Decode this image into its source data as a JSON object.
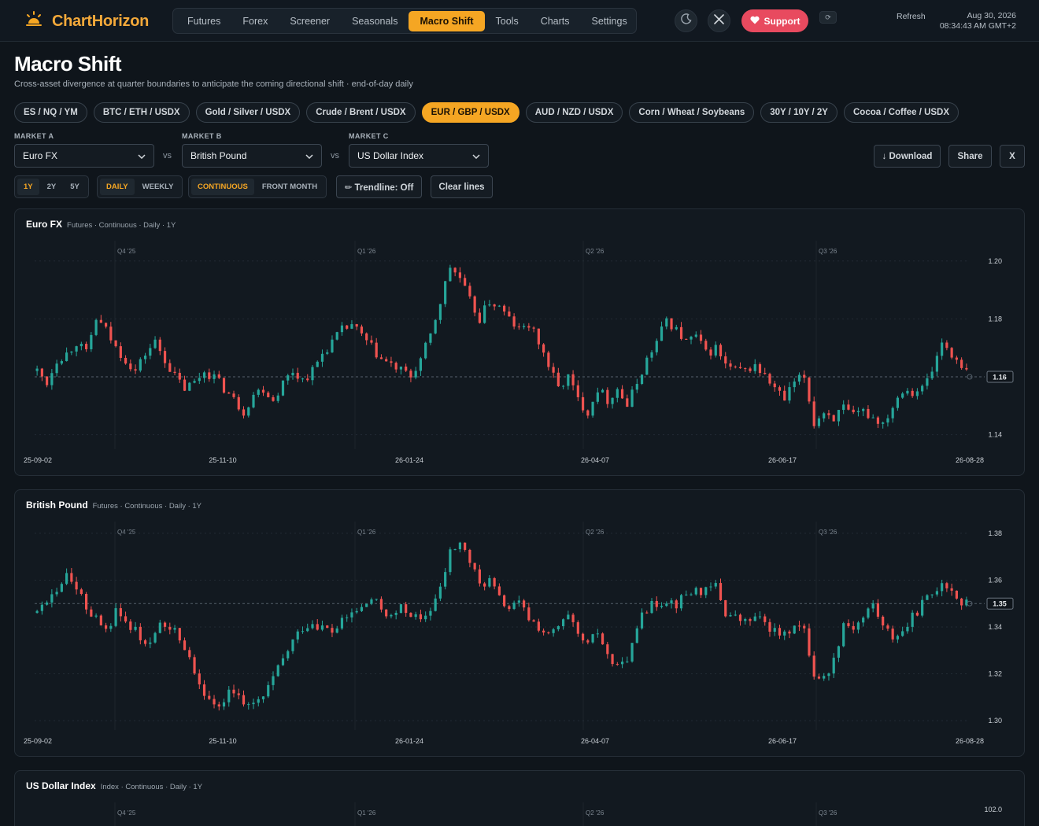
{
  "app": {
    "name": "ChartHorizon"
  },
  "nav": {
    "items": [
      "Futures",
      "Forex",
      "Screener",
      "Seasonals",
      "Macro Shift",
      "Tools",
      "Charts",
      "Settings"
    ],
    "active": "Macro Shift"
  },
  "header": {
    "support_label": "Support",
    "refresh_label": "Refresh",
    "date": "Aug 30, 2026",
    "time": "08:34:43 AM GMT+2",
    "icons": [
      "moon-icon",
      "x-logo-icon",
      "heart-icon",
      "refresh-icon"
    ]
  },
  "page": {
    "title": "Macro Shift",
    "subtitle": "Cross-asset divergence at quarter boundaries to anticipate the coming directional shift · end-of-day daily"
  },
  "presets": {
    "items": [
      "ES / NQ / YM",
      "BTC / ETH / USDX",
      "Gold / Silver / USDX",
      "Crude / Brent / USDX",
      "EUR / GBP / USDX",
      "AUD / NZD / USDX",
      "Corn / Wheat / Soybeans",
      "30Y / 10Y / 2Y",
      "Cocoa / Coffee / USDX"
    ],
    "active": "EUR / GBP / USDX"
  },
  "markets": {
    "a": {
      "label": "MARKET A",
      "value": "Euro FX"
    },
    "b": {
      "label": "MARKET B",
      "value": "British Pound"
    },
    "c": {
      "label": "MARKET C",
      "value": "US Dollar Index"
    },
    "vs": "vs"
  },
  "actions": {
    "download": "↓ Download",
    "share": "Share",
    "close": "X"
  },
  "controls": {
    "ranges": [
      "1Y",
      "2Y",
      "5Y"
    ],
    "range_active": "1Y",
    "intervals": [
      "DAILY",
      "WEEKLY"
    ],
    "interval_active": "DAILY",
    "contracts": [
      "CONTINUOUS",
      "FRONT MONTH"
    ],
    "contract_active": "CONTINUOUS",
    "trendline": "✏ Trendline: Off",
    "clear_lines": "Clear lines"
  },
  "colors": {
    "accent": "#f5a623",
    "up": "#26a69a",
    "down": "#ef5350",
    "background": "#0f151b",
    "panel": "#121920"
  },
  "chart_data": [
    {
      "type": "candlestick",
      "title": "Euro FX",
      "meta": "Futures · Continuous · Daily · 1Y",
      "quarters": [
        "Q4 '25",
        "Q1 '26",
        "Q2 '26",
        "Q3 '26"
      ],
      "x_ticks": [
        "25-09-02",
        "25-11-10",
        "26-01-24",
        "26-04-07",
        "26-06-17",
        "26-08-28"
      ],
      "y_ticks": [
        "1.20",
        "1.18",
        "1.16",
        "1.14"
      ],
      "y_range": [
        1.135,
        1.207
      ],
      "last": 1.16,
      "last_label": "1.16",
      "closes": [
        1.162,
        1.158,
        1.166,
        1.168,
        1.172,
        1.168,
        1.18,
        1.176,
        1.17,
        1.166,
        1.162,
        1.168,
        1.172,
        1.166,
        1.16,
        1.156,
        1.158,
        1.162,
        1.16,
        1.156,
        1.152,
        1.148,
        1.154,
        1.156,
        1.152,
        1.158,
        1.162,
        1.159,
        1.162,
        1.168,
        1.172,
        1.176,
        1.178,
        1.174,
        1.17,
        1.166,
        1.164,
        1.162,
        1.16,
        1.166,
        1.174,
        1.186,
        1.198,
        1.194,
        1.186,
        1.18,
        1.186,
        1.184,
        1.18,
        1.176,
        1.178,
        1.172,
        1.164,
        1.156,
        1.16,
        1.152,
        1.148,
        1.156,
        1.152,
        1.156,
        1.15,
        1.158,
        1.166,
        1.172,
        1.18,
        1.176,
        1.172,
        1.174,
        1.168,
        1.17,
        1.164,
        1.162,
        1.162,
        1.164,
        1.16,
        1.156,
        1.152,
        1.158,
        1.16,
        1.144,
        1.148,
        1.146,
        1.149,
        1.146,
        1.148,
        1.146,
        1.144,
        1.15,
        1.156,
        1.155,
        1.156,
        1.162,
        1.172,
        1.168,
        1.162
      ]
    },
    {
      "type": "candlestick",
      "title": "British Pound",
      "meta": "Futures · Continuous · Daily · 1Y",
      "quarters": [
        "Q4 '25",
        "Q1 '26",
        "Q2 '26",
        "Q3 '26"
      ],
      "x_ticks": [
        "25-09-02",
        "25-11-10",
        "26-01-24",
        "26-04-07",
        "26-06-17",
        "26-08-28"
      ],
      "y_ticks": [
        "1.38",
        "1.36",
        "1.34",
        "1.32",
        "1.30"
      ],
      "y_range": [
        1.296,
        1.385
      ],
      "last": 1.35,
      "last_label": "1.35",
      "closes": [
        1.346,
        1.352,
        1.354,
        1.362,
        1.356,
        1.348,
        1.344,
        1.338,
        1.346,
        1.342,
        1.338,
        1.333,
        1.338,
        1.342,
        1.338,
        1.332,
        1.322,
        1.312,
        1.306,
        1.31,
        1.312,
        1.308,
        1.306,
        1.31,
        1.318,
        1.326,
        1.334,
        1.34,
        1.342,
        1.34,
        1.338,
        1.342,
        1.346,
        1.348,
        1.352,
        1.348,
        1.344,
        1.348,
        1.346,
        1.342,
        1.348,
        1.356,
        1.372,
        1.376,
        1.368,
        1.358,
        1.36,
        1.352,
        1.348,
        1.35,
        1.344,
        1.34,
        1.336,
        1.34,
        1.344,
        1.336,
        1.332,
        1.338,
        1.328,
        1.322,
        1.324,
        1.34,
        1.348,
        1.35,
        1.352,
        1.35,
        1.354,
        1.356,
        1.355,
        1.358,
        1.346,
        1.344,
        1.342,
        1.344,
        1.342,
        1.338,
        1.336,
        1.342,
        1.338,
        1.32,
        1.318,
        1.326,
        1.342,
        1.34,
        1.344,
        1.35,
        1.34,
        1.336,
        1.338,
        1.344,
        1.35,
        1.354,
        1.36,
        1.356,
        1.35
      ]
    },
    {
      "type": "candlestick",
      "title": "US Dollar Index",
      "meta": "Index · Continuous · Daily · 1Y",
      "quarters": [
        "Q4 '25",
        "Q1 '26",
        "Q2 '26",
        "Q3 '26"
      ],
      "y_ticks": [
        "102.0"
      ]
    }
  ]
}
